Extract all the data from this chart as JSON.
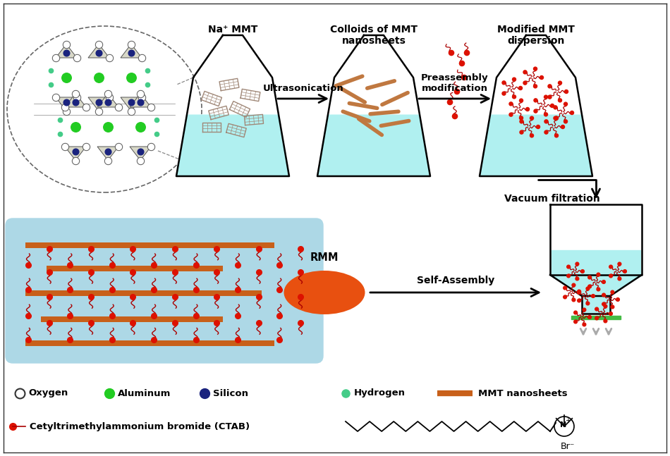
{
  "bg_color": "#ffffff",
  "flask_liquid_color": "#b0f0f0",
  "flask_outline_color": "#000000",
  "mmt_sheet_color": "#c8601a",
  "ctab_head_color": "#dd1100",
  "ctab_tail_color": "#aa0000",
  "rmm_color": "#e85010",
  "filter_arrow_color": "#aaaaaa",
  "legend": {
    "oxygen_label": "Oxygen",
    "aluminum_label": "Aluminum",
    "silicon_label": "Silicon",
    "hydrogen_label": "Hydrogen",
    "mmt_label": "MMT nanosheets",
    "ctab_label": "Cetyltrimethylammonium bromide (CTAB)"
  },
  "labels": {
    "na_mmt": "Na⁺ MMT",
    "colloids": "Colloids of MMT\nnanosheets",
    "modified": "Modified MMT\ndispersion",
    "ultrasonication": "Ultrasonication",
    "preassembly": "Preassembly\nmodification",
    "vacuum": "Vacuum filtration",
    "self_assembly": "Self-Assembly",
    "rmm": "RMM"
  },
  "oxygen_color": "#ffffff",
  "aluminum_color": "#22cc22",
  "silicon_color": "#1a237e",
  "hydrogen_color": "#44cc88",
  "membrane_bg": "#add8e6",
  "filter_green": "#44bb44"
}
